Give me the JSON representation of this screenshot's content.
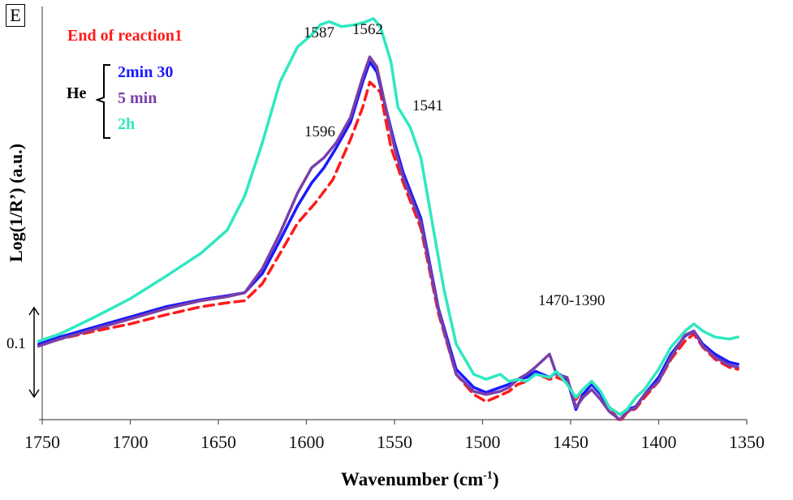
{
  "panel_label": "E",
  "chart_data": {
    "type": "line",
    "xlabel": "Wavenumber (cm",
    "xlabel_sup": "-1",
    "xlabel_end": ")",
    "ylabel": "Log(1/R’)  (a.u.)",
    "xlim": [
      1750,
      1350
    ],
    "x_reversed": true,
    "x_ticks": [
      "1750",
      "1700",
      "1650",
      "1600",
      "1550",
      "1500",
      "1450",
      "1400",
      "1350"
    ],
    "scale_bar_label": "0.1",
    "legend": {
      "group_label": "He",
      "items": [
        {
          "label": "End of reaction1",
          "color": "#ff1a1a"
        },
        {
          "label": "2min 30",
          "color": "#1a1aff"
        },
        {
          "label": "5 min",
          "color": "#7a3fa8"
        },
        {
          "label": "2h",
          "color": "#2ee8c0"
        }
      ]
    },
    "annotations": [
      {
        "text": "1587",
        "x": 1587
      },
      {
        "text": "1562",
        "x": 1562
      },
      {
        "text": "1596",
        "x": 1596
      },
      {
        "text": "1541",
        "x": 1541
      },
      {
        "text": "1470-1390",
        "x": 1430
      }
    ],
    "y_range": [
      0.6,
      4.7
    ],
    "series": [
      {
        "name": "End of reaction1",
        "color": "#ff1a1a",
        "dashed": true,
        "x": [
          1752,
          1740,
          1720,
          1700,
          1680,
          1660,
          1645,
          1635,
          1625,
          1615,
          1605,
          1595,
          1585,
          1575,
          1568,
          1564,
          1558,
          1552,
          1545,
          1535,
          1525,
          1515,
          1505,
          1498,
          1490,
          1485,
          1480,
          1475,
          1470,
          1462,
          1458,
          1452,
          1447,
          1443,
          1438,
          1433,
          1428,
          1422,
          1418,
          1413,
          1408,
          1400,
          1393,
          1385,
          1380,
          1375,
          1368,
          1360,
          1355
        ],
        "y": [
          1.35,
          1.4,
          1.48,
          1.55,
          1.64,
          1.72,
          1.76,
          1.78,
          1.95,
          2.25,
          2.55,
          2.75,
          2.98,
          3.38,
          3.7,
          3.95,
          3.85,
          3.3,
          2.95,
          2.5,
          1.65,
          1.05,
          0.85,
          0.78,
          0.84,
          0.88,
          0.95,
          0.98,
          1.06,
          1.0,
          1.02,
          0.98,
          0.8,
          0.9,
          0.98,
          0.87,
          0.72,
          0.58,
          0.67,
          0.71,
          0.82,
          0.98,
          1.2,
          1.38,
          1.45,
          1.32,
          1.2,
          1.12,
          1.1
        ]
      },
      {
        "name": "2min 30",
        "color": "#1a1aff",
        "dashed": false,
        "x": [
          1752,
          1740,
          1720,
          1700,
          1680,
          1660,
          1645,
          1635,
          1625,
          1615,
          1605,
          1597,
          1590,
          1583,
          1575,
          1568,
          1564,
          1560,
          1555,
          1550,
          1545,
          1535,
          1525,
          1515,
          1505,
          1498,
          1490,
          1485,
          1480,
          1475,
          1470,
          1462,
          1458,
          1452,
          1447,
          1443,
          1438,
          1433,
          1428,
          1422,
          1418,
          1413,
          1408,
          1400,
          1393,
          1385,
          1380,
          1375,
          1368,
          1360,
          1355
        ],
        "y": [
          1.35,
          1.42,
          1.52,
          1.62,
          1.72,
          1.79,
          1.83,
          1.86,
          2.05,
          2.38,
          2.72,
          2.95,
          3.1,
          3.3,
          3.55,
          3.95,
          4.15,
          4.05,
          3.7,
          3.35,
          3.05,
          2.6,
          1.7,
          1.1,
          0.92,
          0.87,
          0.92,
          0.95,
          1.0,
          1.02,
          1.08,
          1.02,
          1.07,
          1.0,
          0.7,
          0.85,
          0.95,
          0.85,
          0.72,
          0.65,
          0.7,
          0.73,
          0.85,
          1.02,
          1.25,
          1.43,
          1.48,
          1.35,
          1.25,
          1.17,
          1.15
        ]
      },
      {
        "name": "5 min",
        "color": "#7a3fa8",
        "dashed": false,
        "x": [
          1752,
          1740,
          1720,
          1700,
          1680,
          1660,
          1645,
          1635,
          1625,
          1615,
          1605,
          1597,
          1590,
          1583,
          1575,
          1568,
          1564,
          1560,
          1555,
          1550,
          1545,
          1535,
          1525,
          1515,
          1505,
          1498,
          1490,
          1485,
          1480,
          1475,
          1470,
          1462,
          1458,
          1452,
          1447,
          1443,
          1438,
          1433,
          1428,
          1422,
          1418,
          1413,
          1408,
          1400,
          1393,
          1385,
          1380,
          1375,
          1368,
          1360,
          1355
        ],
        "y": [
          1.33,
          1.4,
          1.5,
          1.6,
          1.7,
          1.78,
          1.82,
          1.86,
          2.1,
          2.45,
          2.85,
          3.1,
          3.2,
          3.35,
          3.6,
          4.0,
          4.2,
          4.1,
          3.7,
          3.3,
          3.0,
          2.55,
          1.68,
          1.05,
          0.88,
          0.85,
          0.88,
          0.92,
          1.0,
          1.05,
          1.12,
          1.25,
          1.05,
          1.02,
          0.72,
          0.82,
          0.9,
          0.8,
          0.68,
          0.6,
          0.68,
          0.72,
          0.85,
          0.98,
          1.22,
          1.44,
          1.48,
          1.33,
          1.22,
          1.14,
          1.12
        ]
      },
      {
        "name": "2h",
        "color": "#2ee8c0",
        "dashed": false,
        "x": [
          1752,
          1740,
          1720,
          1700,
          1680,
          1660,
          1645,
          1635,
          1625,
          1615,
          1605,
          1597,
          1592,
          1587,
          1580,
          1572,
          1566,
          1562,
          1558,
          1552,
          1548,
          1541,
          1535,
          1530,
          1522,
          1515,
          1505,
          1498,
          1490,
          1485,
          1480,
          1475,
          1470,
          1462,
          1458,
          1452,
          1447,
          1443,
          1438,
          1433,
          1428,
          1422,
          1418,
          1413,
          1408,
          1400,
          1393,
          1385,
          1380,
          1375,
          1368,
          1360,
          1355
        ],
        "y": [
          1.38,
          1.45,
          1.62,
          1.8,
          2.02,
          2.25,
          2.48,
          2.82,
          3.35,
          3.95,
          4.3,
          4.42,
          4.52,
          4.55,
          4.5,
          4.52,
          4.55,
          4.58,
          4.5,
          4.15,
          3.7,
          3.5,
          3.2,
          2.7,
          1.9,
          1.35,
          1.05,
          1.0,
          1.05,
          0.98,
          1.0,
          0.98,
          1.05,
          1.02,
          1.08,
          0.95,
          0.82,
          0.9,
          0.98,
          0.88,
          0.72,
          0.65,
          0.7,
          0.82,
          0.9,
          1.1,
          1.32,
          1.48,
          1.55,
          1.48,
          1.42,
          1.4,
          1.42
        ]
      }
    ]
  }
}
